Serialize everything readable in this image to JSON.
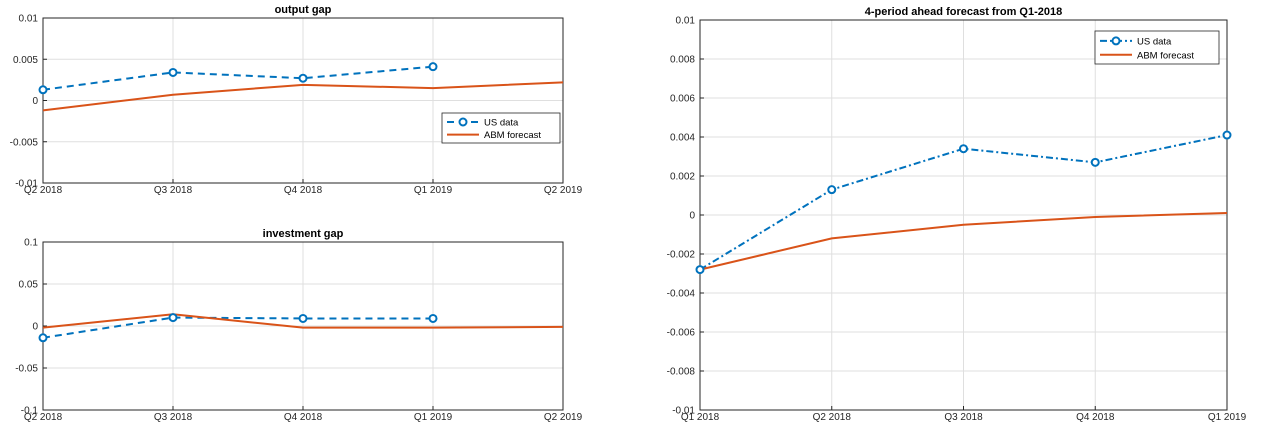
{
  "colors": {
    "us_data": "#0072BD",
    "abm_forecast": "#D95319"
  },
  "chart_data": [
    {
      "type": "line",
      "title": "output gap",
      "categories": [
        "Q2 2018",
        "Q3 2018",
        "Q4 2018",
        "Q1 2019",
        "Q2 2019"
      ],
      "ylim": [
        -0.01,
        0.01
      ],
      "yticks": [
        "-0.01",
        "-0.005",
        "0",
        "0.005",
        "0.01"
      ],
      "yticks_values": [
        -0.01,
        -0.005,
        0,
        0.005,
        0.01
      ],
      "grid": true,
      "legend": "lower-right",
      "series": [
        {
          "name": "US data",
          "style": "dashed-circle",
          "values": [
            0.0013,
            0.0034,
            0.0027,
            0.0041,
            null
          ]
        },
        {
          "name": "ABM forecast",
          "style": "solid",
          "values": [
            -0.0012,
            0.0007,
            0.0019,
            0.0015,
            0.0022
          ]
        }
      ]
    },
    {
      "type": "line",
      "title": "investment gap",
      "categories": [
        "Q2 2018",
        "Q3 2018",
        "Q4 2018",
        "Q1 2019",
        "Q2 2019"
      ],
      "ylim": [
        -0.1,
        0.1
      ],
      "yticks": [
        "-0.1",
        "-0.05",
        "0",
        "0.05",
        "0.1"
      ],
      "yticks_values": [
        -0.1,
        -0.05,
        0,
        0.05,
        0.1
      ],
      "grid": true,
      "series": [
        {
          "name": "US data",
          "style": "dashed-circle",
          "values": [
            -0.014,
            0.01,
            0.009,
            0.009,
            null
          ]
        },
        {
          "name": "ABM forecast",
          "style": "solid",
          "values": [
            -0.002,
            0.014,
            -0.002,
            -0.002,
            -0.001
          ]
        }
      ]
    },
    {
      "type": "line",
      "title": "4-period ahead forecast from Q1-2018",
      "categories": [
        "Q1 2018",
        "Q2 2018",
        "Q3 2018",
        "Q4 2018",
        "Q1 2019"
      ],
      "ylim": [
        -0.01,
        0.01
      ],
      "yticks": [
        "-0.01",
        "-0.008",
        "-0.006",
        "-0.004",
        "-0.002",
        "0",
        "0.002",
        "0.004",
        "0.006",
        "0.008",
        "0.01"
      ],
      "yticks_values": [
        -0.01,
        -0.008,
        -0.006,
        -0.004,
        -0.002,
        0,
        0.002,
        0.004,
        0.006,
        0.008,
        0.01
      ],
      "grid": true,
      "legend": "top-right",
      "series": [
        {
          "name": "US data",
          "style": "dashdot-circle",
          "values": [
            -0.0028,
            0.0013,
            0.0034,
            0.0027,
            0.0041
          ]
        },
        {
          "name": "ABM forecast",
          "style": "solid",
          "values": [
            -0.0028,
            -0.0012,
            -0.0005,
            -0.0001,
            0.0001
          ]
        }
      ]
    }
  ]
}
